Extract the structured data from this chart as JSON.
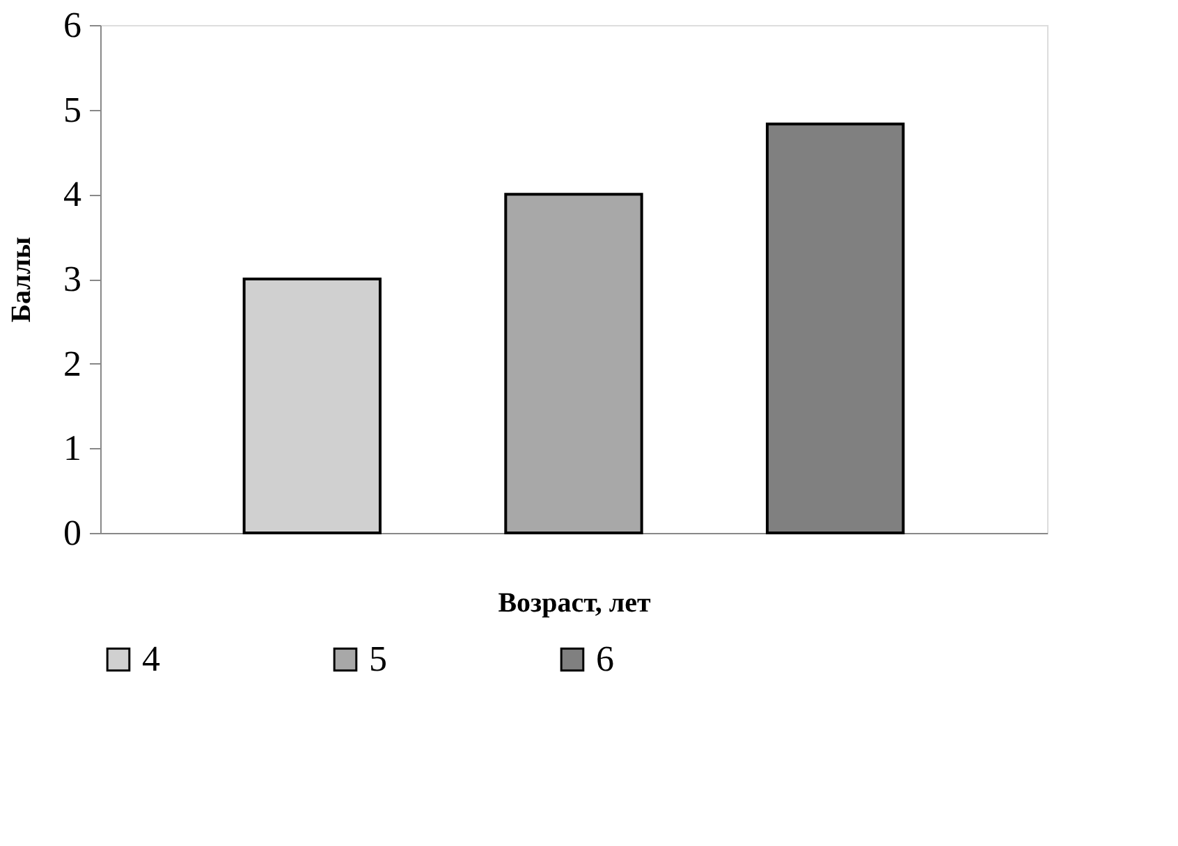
{
  "chart_data": {
    "type": "bar",
    "xlabel": "Возраст, лет",
    "ylabel": "Баллы",
    "categories": [
      null,
      null,
      null
    ],
    "series": [
      {
        "name": "4",
        "color": "#d0d0d0",
        "values": [
          3,
          null,
          null
        ]
      },
      {
        "name": "5",
        "color": "#a8a8a8",
        "values": [
          null,
          4,
          null
        ]
      },
      {
        "name": "6",
        "color": "#808080",
        "values": [
          null,
          null,
          4.83
        ]
      }
    ],
    "ylim": [
      0,
      6
    ],
    "yticks": [
      0,
      1,
      2,
      3,
      4,
      5,
      6
    ],
    "grid": false,
    "legend": "bottom",
    "tick_labels": "y"
  }
}
